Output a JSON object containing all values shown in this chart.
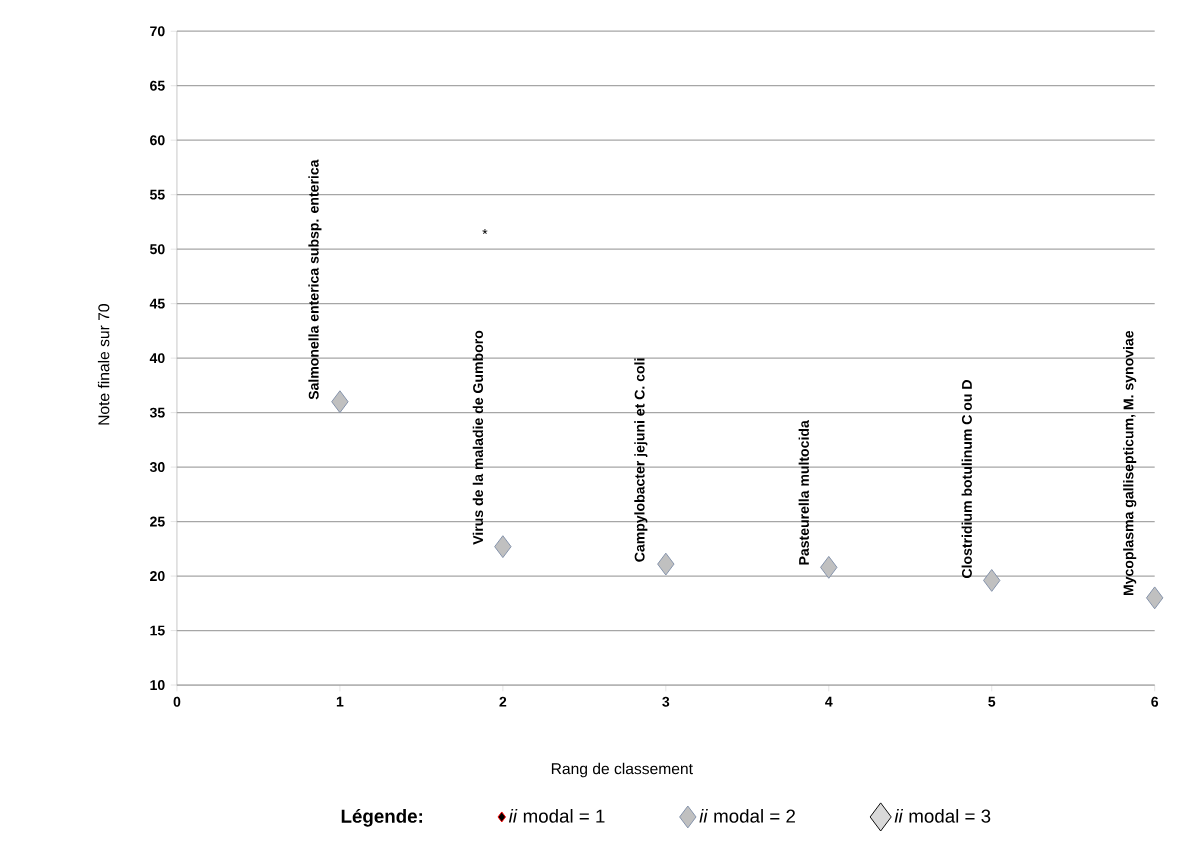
{
  "chart_data": {
    "type": "scatter",
    "xlabel": "Rang de classement",
    "ylabel": "Note finale sur 70",
    "legend_title": "Légende:",
    "x": [
      1,
      2,
      3,
      4,
      5,
      6
    ],
    "series": [
      {
        "name": "*ii* modal = 1",
        "color": "#000000",
        "values": [
          null,
          null,
          null,
          null,
          null,
          null
        ]
      },
      {
        "name": "*ii* modal = 2",
        "color": "#c0c0c0",
        "values": [
          36.0,
          22.7,
          21.1,
          20.8,
          19.6,
          18.0
        ]
      },
      {
        "name": "*ii* modal = 3",
        "color": "#d9d9d9",
        "values": [
          null,
          null,
          null,
          null,
          null,
          null
        ]
      }
    ],
    "xlim": [
      0,
      6
    ],
    "xticks": [
      0,
      1,
      2,
      3,
      4,
      5,
      6
    ],
    "ylim": [
      10,
      70
    ],
    "yticks": [
      10,
      15,
      20,
      25,
      30,
      35,
      40,
      45,
      50,
      55,
      60,
      65,
      70
    ],
    "grid": "y",
    "legend": "bottom",
    "marker": "diamond",
    "annotations": [
      {
        "text": "Salmonella enterica subsp. enterica",
        "x": 1,
        "y": 36.0
      },
      {
        "text": "Virus de la maladie de Gumboro",
        "x": 2,
        "y": 22.7
      },
      "*",
      {
        "text": "Campylobacter jejuni et C. coli",
        "x": 3,
        "y": 21.1
      },
      {
        "text": "Pasteurella multocida",
        "x": 4,
        "y": 20.8
      },
      {
        "text": "Clostridium botulinum C ou D",
        "x": 5,
        "y": 19.6
      },
      {
        "text": "Mycoplasma gallisepticum, M. synoviae",
        "x": 6,
        "y": 18.0
      }
    ]
  }
}
